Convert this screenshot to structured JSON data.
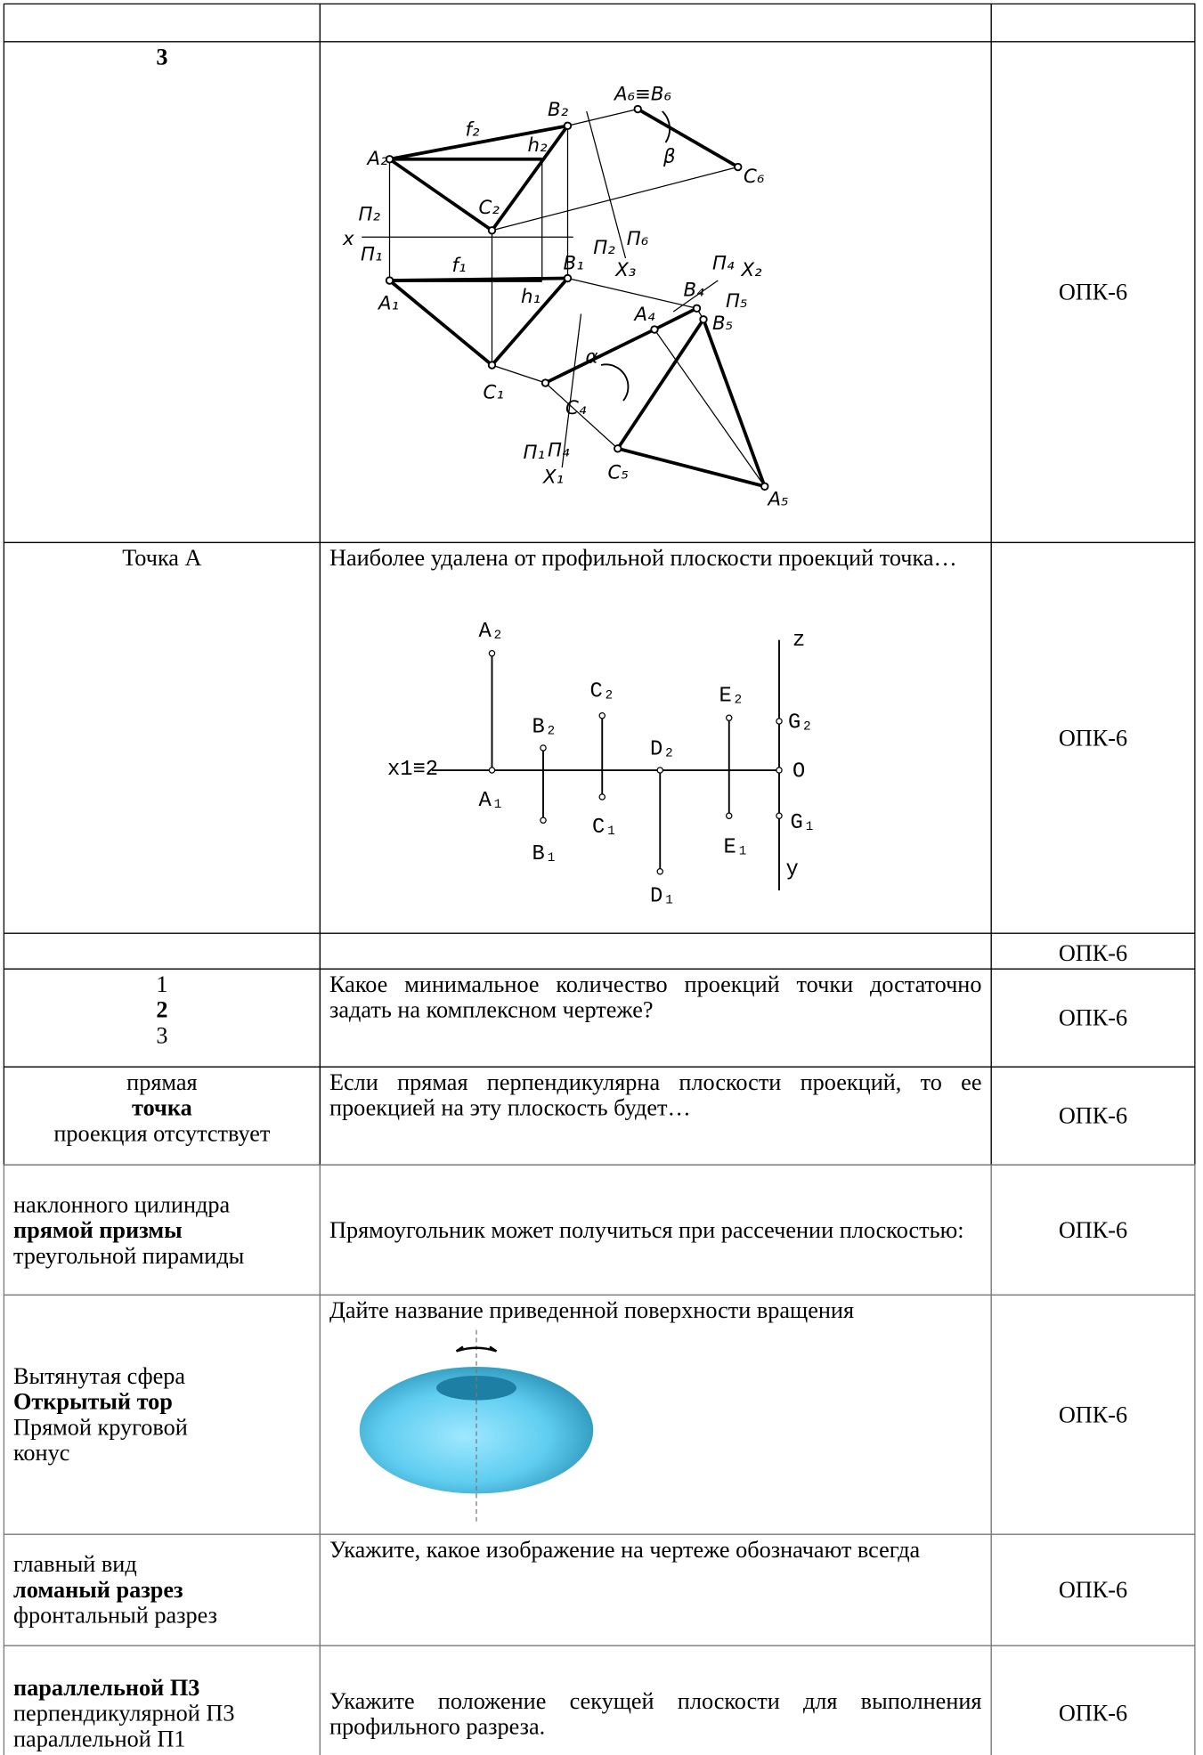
{
  "table": {
    "rows": [
      {
        "answers": [
          "3"
        ],
        "correct": 0,
        "competency": "ОПК-6",
        "figure_labels": [
          "A₂",
          "f₂",
          "B₂",
          "h₂",
          "A₆≡B₆",
          "β",
          "C₆",
          "C₂",
          "x",
          "П₂",
          "П₁",
          "f₁",
          "B₁",
          "h₁",
          "A₁",
          "П₂",
          "П₆",
          "X₃",
          "П₄",
          "X₂",
          "П₅",
          "B₄",
          "B₅",
          "A₄",
          "α",
          "C₁",
          "C₄",
          "П₁",
          "П₄",
          "X₁",
          "C₅",
          "A₅"
        ]
      },
      {
        "answers": [
          "Точка А"
        ],
        "question": "Наиболее удалена от профильной плоскости проекций точка…",
        "competency": "ОПК-6",
        "figure_labels": [
          "A₂",
          "B₂",
          "C₂",
          "D₂",
          "E₂",
          "z",
          "G₂",
          "O",
          "G₁",
          "y",
          "x1≡2",
          "A₁",
          "B₁",
          "C₁",
          "D₁",
          "E₁"
        ]
      },
      {
        "competency": "ОПК-6"
      },
      {
        "answers": [
          "1",
          "2",
          "3"
        ],
        "correct": 1,
        "question": "Какое минимальное количество проекций точки достаточно задать на комплексном чертеже?",
        "competency": "ОПК-6"
      },
      {
        "answers": [
          "прямая",
          "точка",
          "проекция отсутствует"
        ],
        "correct": 1,
        "question": "Если прямая перпендикулярна плоскости проекций, то ее проекцией на эту плоскость будет…",
        "competency": "ОПК-6"
      },
      {
        "answers": [
          "наклонного цилиндра",
          "прямой призмы",
          "треугольной пирамиды"
        ],
        "correct": 1,
        "question": "Прямоугольник может получиться при рассечении плоскостью:",
        "competency": "ОПК-6"
      },
      {
        "answers": [
          "Вытянутая сфера",
          "Открытый тор",
          "Прямой круговой конус"
        ],
        "correct": 1,
        "question": "Дайте название приведенной поверхности вращения",
        "competency": "ОПК-6"
      },
      {
        "answers": [
          "главный вид",
          "ломаный разрез",
          "фронтальный разрез"
        ],
        "correct": 1,
        "question": "Укажите, какое изображение на чертеже обозначают всегда",
        "competency": "ОПК-6"
      },
      {
        "answers": [
          "параллельной П3",
          "перпендикулярной П3",
          "параллельной П1"
        ],
        "correct": 0,
        "question": "Укажите положение секущей плоскости для выполнения профильного разреза.",
        "competency": "ОПК-6"
      }
    ]
  }
}
